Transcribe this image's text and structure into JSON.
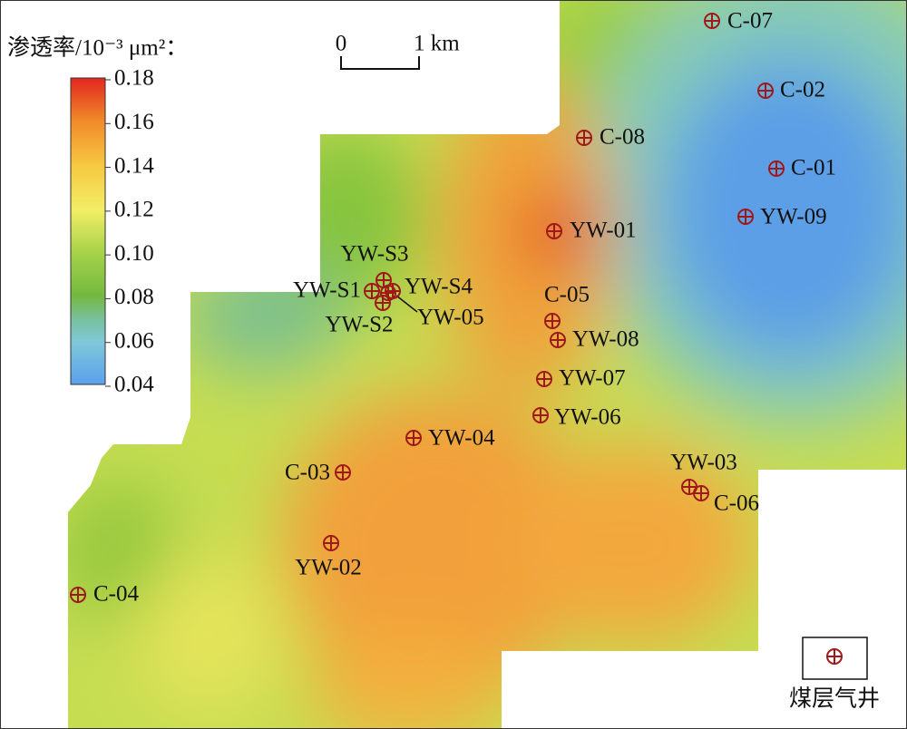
{
  "map": {
    "legend_title": "渗透率/10⁻³ μm²：",
    "colorbar": {
      "range": [
        0.04,
        0.18
      ],
      "ticks": [
        0.18,
        0.16,
        0.14,
        0.12,
        {
          "value": 0.1,
          "label": "0.10"
        },
        0.08,
        0.06,
        0.04
      ]
    },
    "scale_bar": {
      "start": "0",
      "end": "1 km"
    },
    "wells": [
      "C-07",
      "C-02",
      "C-08",
      "C-01",
      "YW-09",
      "YW-01",
      "YW-S3",
      "YW-S1",
      "YW-S4",
      "YW-S2",
      "YW-05",
      "C-05",
      "YW-08",
      "YW-07",
      "YW-06",
      "YW-04",
      "C-03",
      "YW-03",
      "C-06",
      "YW-02",
      "C-04"
    ],
    "well_legend": "煤层气井"
  }
}
